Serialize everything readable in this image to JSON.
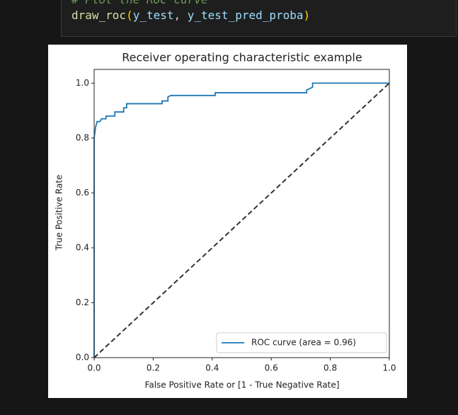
{
  "code_cell": {
    "comment": "# Plot the ROC curve",
    "tokens": [
      {
        "text": "draw_roc",
        "color": "#dcdcaa"
      },
      {
        "text": "(",
        "color": "#ffd700"
      },
      {
        "text": "y_test",
        "color": "#9cdcfe"
      },
      {
        "text": ", ",
        "color": "#d4d4d4"
      },
      {
        "text": "y_test_pred_proba",
        "color": "#9cdcfe"
      },
      {
        "text": ")",
        "color": "#ffd700"
      }
    ]
  },
  "chart_data": {
    "type": "line",
    "title": "Receiver operating characteristic example",
    "xlabel": "False Positive Rate or [1 - True Negative Rate]",
    "ylabel": "True Positive Rate",
    "xlim": [
      0,
      1
    ],
    "ylim": [
      0,
      1.05
    ],
    "xticks": [
      {
        "value": 0,
        "label": "0.0"
      },
      0.2,
      0.4,
      0.6,
      0.8,
      {
        "value": 1,
        "label": "1.0"
      }
    ],
    "yticks": [
      {
        "value": 0,
        "label": "0.0"
      },
      0.2,
      0.4,
      0.6,
      0.8,
      {
        "value": 1,
        "label": "1.0"
      }
    ],
    "legend": "lower right",
    "series": [
      {
        "name": "ROC curve (area = 0.96)",
        "color": "#1f77b4",
        "x": [
          0,
          0,
          0.005,
          0.01,
          0.02,
          0.025,
          0.04,
          0.04,
          0.07,
          0.07,
          0.1,
          0.1,
          0.11,
          0.11,
          0.23,
          0.23,
          0.25,
          0.25,
          0.26,
          0.41,
          0.41,
          0.72,
          0.72,
          0.74,
          0.74,
          1
        ],
        "values": [
          0,
          0.8,
          0.84,
          0.86,
          0.86,
          0.87,
          0.87,
          0.88,
          0.88,
          0.895,
          0.895,
          0.91,
          0.91,
          0.925,
          0.925,
          0.935,
          0.935,
          0.95,
          0.955,
          0.955,
          0.965,
          0.965,
          0.975,
          0.985,
          1,
          1
        ]
      },
      {
        "color": "#333333",
        "dashed": true,
        "x": [
          0,
          1
        ],
        "values": [
          0,
          1
        ]
      }
    ]
  }
}
